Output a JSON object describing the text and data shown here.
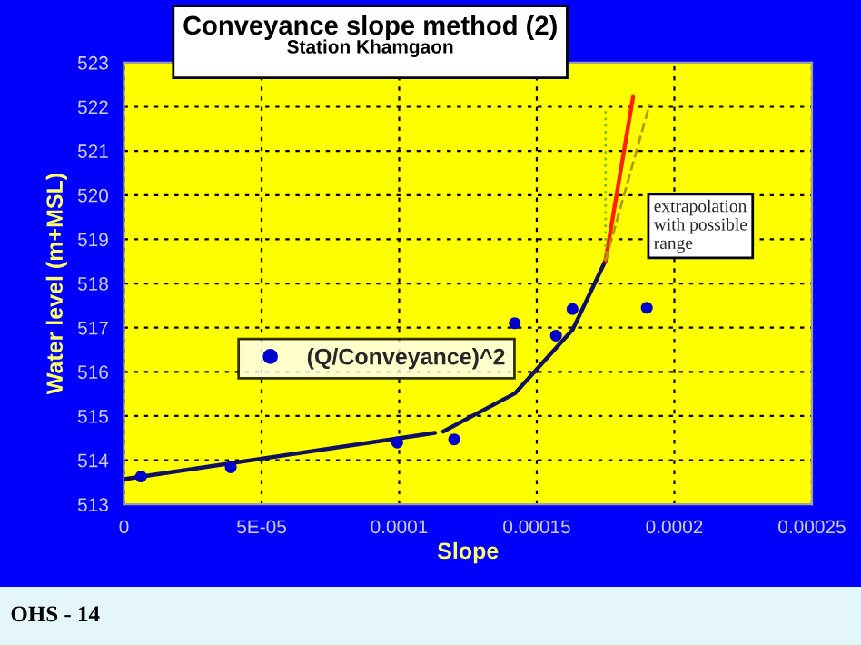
{
  "chart_data": {
    "type": "scatter",
    "title": "Conveyance slope method (2)",
    "subtitle": "Station Khamgaon",
    "xlabel": "Slope",
    "ylabel": "Water level (m+MSL)",
    "xlim": [
      0,
      0.00025
    ],
    "ylim": [
      513,
      523
    ],
    "xticks": [
      0,
      {
        "value": 5e-05,
        "label": "5E-05"
      },
      0.0001,
      0.00015,
      0.0002,
      0.00025
    ],
    "yticks": [
      513,
      514,
      515,
      516,
      517,
      518,
      519,
      520,
      521,
      522,
      523
    ],
    "grid": true,
    "legend": "left",
    "series": [
      {
        "name": "(Q/Conveyance)^2",
        "type": "scatter",
        "marker": "circle",
        "color": "#0000cc",
        "x": [
          6.2e-06,
          3.88e-05,
          9.93e-05,
          0.00012,
          0.000142,
          0.000157,
          0.000163,
          0.00019
        ],
        "values": [
          513.63,
          513.84,
          514.4,
          514.47,
          517.1,
          516.82,
          517.42,
          517.45
        ]
      },
      {
        "type": "line",
        "line_style": "solid",
        "color": "#101060",
        "x": [
          0,
          0.000113
        ],
        "values": [
          513.57,
          514.62
        ]
      },
      {
        "type": "line",
        "line_style": "solid",
        "color": "#101060",
        "x": [
          0.000116,
          0.000142,
          0.000163,
          0.000175
        ],
        "values": [
          514.65,
          515.51,
          516.95,
          518.52
        ]
      },
      {
        "type": "line",
        "line_style": "solid",
        "color": "#ff2000",
        "x": [
          0.000175,
          0.000185
        ],
        "values": [
          518.52,
          522.22
        ]
      },
      {
        "type": "line",
        "line_style": "dotted",
        "color": "#80c000",
        "x": [
          0.000175,
          0.000175
        ],
        "values": [
          518.52,
          521.9
        ]
      },
      {
        "type": "line",
        "line_style": "dashed",
        "color": "#b09800",
        "x": [
          0.000175,
          0.000191
        ],
        "values": [
          518.52,
          522.05
        ]
      }
    ],
    "annotations": [
      "extrapolation\nwith possible\nrange",
      "OHS - 14"
    ]
  }
}
